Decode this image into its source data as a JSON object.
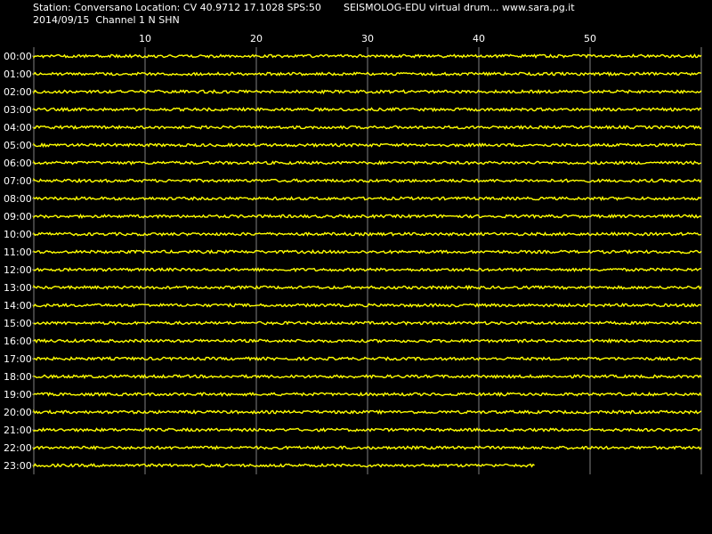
{
  "header": {
    "station_line": "Station: Conversano Location: CV 40.9712 17.1028 SPS:50",
    "title_line": "SEISMOLOG-EDU virtual drum... www.sara.pg.it",
    "date_line": "2014/09/15  Channel 1 N SHN"
  },
  "colors": {
    "background": "#000000",
    "trace": "#ffff00",
    "grid": "#808080",
    "text": "#ffffff"
  },
  "chart_data": {
    "type": "line",
    "title": "",
    "xlabel": "",
    "ylabel": "",
    "x_unit": "minutes",
    "xlim": [
      0,
      60
    ],
    "x_ticks": [
      10,
      20,
      30,
      40,
      50
    ],
    "x_tick_labels": [
      "10",
      "20",
      "30",
      "40",
      "50"
    ],
    "rows": [
      "00:00",
      "01:00",
      "02:00",
      "03:00",
      "04:00",
      "05:00",
      "06:00",
      "07:00",
      "08:00",
      "09:00",
      "10:00",
      "11:00",
      "12:00",
      "13:00",
      "14:00",
      "15:00",
      "16:00",
      "17:00",
      "18:00",
      "19:00",
      "20:00",
      "21:00",
      "22:00",
      "23:00"
    ],
    "row_end_minute": [
      60,
      60,
      60,
      60,
      60,
      60,
      60,
      60,
      60,
      60,
      60,
      60,
      60,
      60,
      60,
      60,
      60,
      60,
      60,
      60,
      60,
      60,
      60,
      45
    ],
    "grid": true,
    "legend": "none"
  }
}
